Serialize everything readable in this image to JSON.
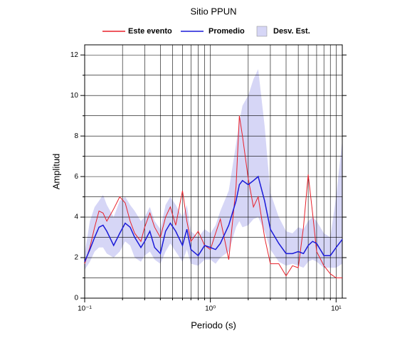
{
  "chart_data": {
    "type": "line",
    "title": "Sitio PPUN",
    "x_label": "Periodo (s)",
    "y_label": "Amplitud",
    "x_log": true,
    "grid": true,
    "xlim": [
      0.1,
      11.2
    ],
    "ylim": [
      0,
      12.5
    ],
    "xticks": [
      {
        "value": 0.1,
        "label": "10⁻¹"
      },
      {
        "value": 1,
        "label": "10⁰"
      },
      {
        "value": 10,
        "label": "10¹"
      }
    ],
    "xminor": [
      0.2,
      0.3,
      0.4,
      0.5,
      0.6,
      0.7,
      0.8,
      0.9,
      2,
      3,
      4,
      5,
      6,
      7,
      8,
      9
    ],
    "yticks": [
      0,
      2,
      4,
      6,
      8,
      10,
      12
    ],
    "yminor": [
      1,
      3,
      5,
      7,
      9,
      11
    ],
    "x": [
      0.1,
      0.11,
      0.12,
      0.13,
      0.14,
      0.15,
      0.17,
      0.19,
      0.21,
      0.23,
      0.25,
      0.28,
      0.3,
      0.33,
      0.36,
      0.4,
      0.44,
      0.48,
      0.53,
      0.6,
      0.65,
      0.7,
      0.8,
      0.9,
      1.0,
      1.1,
      1.2,
      1.4,
      1.6,
      1.7,
      1.8,
      2.0,
      2.2,
      2.4,
      2.7,
      3,
      3.5,
      4,
      4.5,
      5,
      5.5,
      6,
      6.5,
      7,
      8,
      9,
      10,
      11.2
    ],
    "band": {
      "name": "Desv. Est.",
      "color": "#d6d6f6",
      "lower": [
        1.4,
        1.8,
        2.3,
        2.5,
        2.5,
        2.2,
        2.0,
        2.3,
        2.8,
        2.6,
        2.0,
        1.8,
        2.1,
        2.3,
        1.9,
        1.7,
        2.3,
        2.7,
        2.3,
        1.8,
        2.4,
        1.7,
        1.6,
        1.9,
        1.9,
        1.7,
        2.0,
        2.3,
        3.5,
        3.8,
        3.5,
        3.6,
        3.9,
        4.0,
        3.3,
        2.4,
        1.8,
        1.6,
        1.7,
        1.6,
        1.5,
        1.8,
        1.9,
        1.8,
        1.5,
        1.5,
        1.5,
        1.7
      ],
      "upper": [
        2.2,
        3.8,
        4.5,
        4.8,
        5.1,
        4.6,
        4.0,
        4.8,
        5.0,
        4.6,
        4.3,
        3.8,
        4.0,
        4.5,
        3.8,
        3.4,
        4.6,
        5.0,
        4.6,
        4.0,
        4.6,
        3.3,
        3.0,
        3.4,
        3.2,
        3.6,
        4.3,
        5.3,
        7.6,
        8.7,
        9.5,
        10.0,
        10.8,
        11.3,
        8.5,
        5.2,
        4.0,
        3.3,
        3.2,
        3.5,
        3.4,
        3.8,
        4.0,
        3.8,
        3.2,
        3.0,
        5.0,
        7.8
      ]
    },
    "series": [
      {
        "name": "Este evento",
        "color": "#e8202a",
        "values": [
          1.7,
          2.5,
          3.5,
          4.3,
          4.2,
          3.8,
          4.4,
          5.0,
          4.7,
          3.8,
          3.2,
          2.8,
          3.5,
          4.2,
          3.5,
          3.0,
          4.0,
          4.5,
          3.6,
          5.3,
          3.8,
          2.8,
          3.3,
          2.6,
          2.4,
          3.2,
          3.9,
          1.9,
          5.5,
          9.0,
          8.0,
          5.9,
          4.5,
          5.0,
          3.0,
          1.7,
          1.7,
          1.1,
          1.6,
          1.5,
          3.5,
          6.1,
          4.2,
          2.3,
          1.6,
          1.2,
          1.0,
          1.0
        ]
      },
      {
        "name": "Promedio",
        "color": "#1a1ad8",
        "values": [
          1.8,
          2.4,
          3.0,
          3.5,
          3.6,
          3.3,
          2.6,
          3.2,
          3.7,
          3.5,
          3.0,
          2.5,
          2.8,
          3.3,
          2.5,
          2.2,
          3.3,
          3.7,
          3.3,
          2.6,
          3.4,
          2.4,
          2.1,
          2.6,
          2.5,
          2.4,
          2.7,
          3.6,
          4.8,
          5.6,
          5.8,
          5.6,
          5.8,
          6.0,
          4.8,
          3.4,
          2.7,
          2.2,
          2.2,
          2.3,
          2.2,
          2.6,
          2.8,
          2.7,
          2.1,
          2.1,
          2.5,
          2.9
        ]
      }
    ]
  }
}
